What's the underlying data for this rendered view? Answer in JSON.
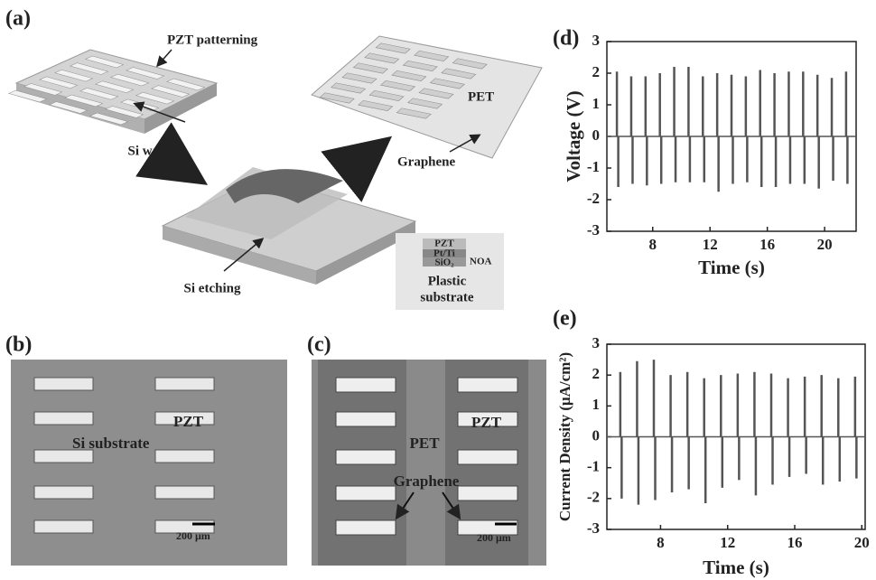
{
  "chart_data": [
    {
      "type": "spike",
      "panel_label": "(d)",
      "xlabel": "Time (s)",
      "ylabel": "Voltage (V)",
      "x": [
        5.5,
        6.5,
        7.5,
        8.5,
        9.5,
        10.5,
        11.5,
        12.5,
        13.5,
        14.5,
        15.5,
        16.5,
        17.5,
        18.5,
        19.5,
        20.5,
        21.5
      ],
      "peaks": [
        2.05,
        1.9,
        1.9,
        2.0,
        2.2,
        2.2,
        1.9,
        2.0,
        1.95,
        1.9,
        2.1,
        2.0,
        2.05,
        2.05,
        1.95,
        1.85,
        2.05
      ],
      "troughs": [
        -1.6,
        -1.5,
        -1.55,
        -1.5,
        -1.45,
        -1.45,
        -1.45,
        -1.75,
        -1.5,
        -1.45,
        -1.6,
        -1.6,
        -1.5,
        -1.5,
        -1.65,
        -1.4,
        -1.5
      ],
      "color": "#555555",
      "xlim": [
        4.8,
        22.2
      ],
      "ylim": [
        -3,
        3
      ],
      "xticks": [
        8,
        12,
        16,
        20
      ],
      "yticks": [
        -3,
        -2,
        -1,
        0,
        1,
        2,
        3
      ]
    },
    {
      "type": "spike",
      "panel_label": "(e)",
      "xlabel": "Time (s)",
      "ylabel": "Current Density (μA/cm²)",
      "x": [
        5.6,
        6.6,
        7.6,
        8.6,
        9.6,
        10.6,
        11.6,
        12.6,
        13.6,
        14.6,
        15.6,
        16.6,
        17.6,
        18.6,
        19.6
      ],
      "peaks": [
        2.1,
        2.45,
        2.5,
        2.0,
        2.1,
        1.9,
        2.0,
        2.05,
        2.1,
        2.05,
        1.9,
        1.95,
        2.0,
        1.9,
        1.95
      ],
      "troughs": [
        -2.0,
        -2.2,
        -2.05,
        -1.8,
        -1.7,
        -2.15,
        -1.65,
        -1.4,
        -1.9,
        -1.55,
        -1.3,
        -1.2,
        -1.55,
        -1.45,
        -1.35
      ],
      "color": "#555555",
      "xlim": [
        4.8,
        20.2
      ],
      "ylim": [
        -3,
        3
      ],
      "xticks": [
        8,
        12,
        16,
        20
      ],
      "yticks": [
        -3,
        -2,
        -1,
        0,
        1,
        2,
        3
      ]
    }
  ],
  "panels": {
    "a": {
      "label": "(a)",
      "pzt_patterning": "PZT patterning",
      "si_wafer": "Si wafer",
      "pet": "PET",
      "graphene": "Graphene",
      "si_etching": "Si etching",
      "stack": {
        "pzt": "PZT",
        "ptti": "Pt/Ti",
        "sio2": "SiO₂",
        "noa": "NOA",
        "plastic": "Plastic",
        "substrate": "substrate"
      }
    },
    "b": {
      "label": "(b)",
      "substrate": "Si substrate",
      "pzt": "PZT",
      "scale": "200 μm"
    },
    "c": {
      "label": "(c)",
      "pet": "PET",
      "pzt": "PZT",
      "graphene": "Graphene",
      "scale": "200 μm"
    }
  }
}
